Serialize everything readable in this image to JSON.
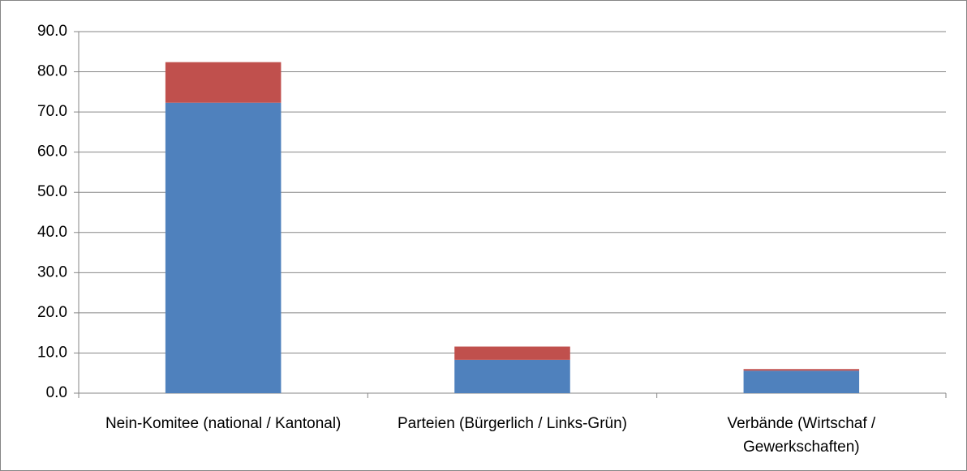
{
  "chart_data": {
    "type": "stacked_bar",
    "categories": [
      "Nein-Komitee (national / Kantonal)",
      "Parteien (Bürgerlich / Links-Grün)",
      "Verbände (Wirtschaf / Gewerkschaften)"
    ],
    "series": [
      {
        "color": "#4f81bd",
        "values": [
          72.3,
          8.3,
          5.6
        ]
      },
      {
        "color": "#c0504d",
        "values": [
          10.1,
          3.3,
          0.4
        ]
      }
    ],
    "ylim": [
      0,
      90
    ],
    "yticks": [
      {
        "value": 0,
        "label": "0.0"
      },
      {
        "value": 10,
        "label": "10.0"
      },
      {
        "value": 20,
        "label": "20.0"
      },
      {
        "value": 30,
        "label": "30.0"
      },
      {
        "value": 40,
        "label": "40.0"
      },
      {
        "value": 50,
        "label": "50.0"
      },
      {
        "value": 60,
        "label": "60.0"
      },
      {
        "value": 70,
        "label": "70.0"
      },
      {
        "value": 80,
        "label": "80.0"
      },
      {
        "value": 90,
        "label": "90.0"
      }
    ],
    "grid": true
  }
}
